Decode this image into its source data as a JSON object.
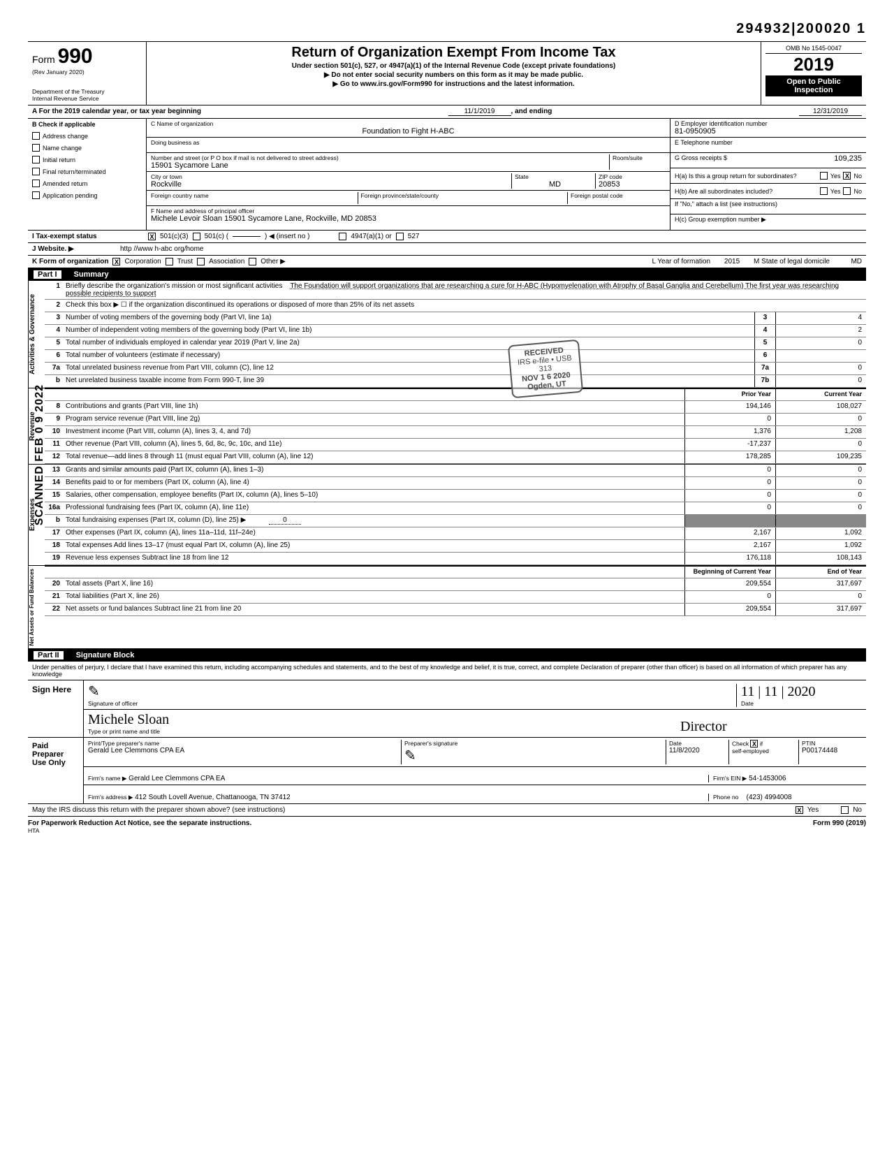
{
  "docstamp": "294932|200020 1",
  "scanned_side": "SCANNED FEB 0 9 2022",
  "header": {
    "form_word": "Form",
    "form_num": "990",
    "rev": "(Rev January 2020)",
    "dept": "Department of the Treasury",
    "irs": "Internal Revenue Service",
    "title": "Return of Organization Exempt From Income Tax",
    "sub1": "Under section 501(c), 527, or 4947(a)(1) of the Internal Revenue Code (except private foundations)",
    "sub2": "▶ Do not enter social security numbers on this form as it may be made public.",
    "sub3": "▶ Go to www.irs.gov/Form990 for instructions and the latest information.",
    "omb": "OMB No 1545-0047",
    "year": "2019",
    "open1": "Open to Public",
    "open2": "Inspection"
  },
  "rowA": {
    "label": "A  For the 2019 calendar year, or tax year beginning",
    "begin": "11/1/2019",
    "mid": ", and ending",
    "end": "12/31/2019"
  },
  "colB": {
    "hdr": "B  Check if applicable",
    "items": [
      "Address change",
      "Name change",
      "Initial return",
      "Final return/terminated",
      "Amended return",
      "Application pending"
    ]
  },
  "colC": {
    "name_lbl": "C  Name of organization",
    "name": "Foundation to Fight H-ABC",
    "dba_lbl": "Doing business as",
    "dba": "",
    "addr_lbl": "Number and street (or P O  box if mail is not delivered to street address)",
    "room_lbl": "Room/suite",
    "addr": "15901 Sycamore Lane",
    "city_lbl": "City or town",
    "state_lbl": "State",
    "zip_lbl": "ZIP code",
    "city": "Rockville",
    "state": "MD",
    "zip": "20853",
    "foreign_country_lbl": "Foreign country name",
    "foreign_prov_lbl": "Foreign province/state/county",
    "foreign_postal_lbl": "Foreign postal code",
    "officer_lbl": "F  Name and address of principal officer",
    "officer": "Michele Levoir Sloan 15901 Sycamore Lane, Rockville, MD  20853"
  },
  "colD": {
    "ein_lbl": "D  Employer identification number",
    "ein": "81-0950905",
    "tel_lbl": "E  Telephone number",
    "tel": "",
    "gross_lbl": "G  Gross receipts $",
    "gross": "109,235",
    "h_a": "H(a) Is this a group return for subordinates?",
    "h_b": "H(b) Are all subordinates included?",
    "h_no": "If \"No,\" attach a list  (see instructions)",
    "h_c": "H(c) Group exemption number ▶",
    "yes": "Yes",
    "no": "No",
    "x": "X"
  },
  "rowI": {
    "lbl": "I     Tax-exempt status",
    "opt1": "501(c)(3)",
    "opt2": "501(c)  (",
    "opt2b": ")  ◀ (insert no )",
    "opt3": "4947(a)(1) or",
    "opt4": "527"
  },
  "rowJ": {
    "lbl": "J     Website.  ▶",
    "val": "http //www h-abc org/home"
  },
  "rowK": {
    "lbl": "K  Form of organization",
    "opts": [
      "Corporation",
      "Trust",
      "Association",
      "Other ▶"
    ],
    "year_lbl": "L Year of formation",
    "year": "2015",
    "state_lbl": "M State of legal domicile",
    "state": "MD"
  },
  "part1": {
    "num": "Part I",
    "title": "Summary"
  },
  "stamp": {
    "l1": "RECEIVED",
    "l2": "IRS e-file • USB",
    "l3": "313",
    "l4": "NOV 1 6 2020",
    "l5": "Ogden, UT"
  },
  "summary": {
    "tabs": [
      "Activities & Governance",
      "Revenue",
      "Expenses",
      "Net Assets or\nFund Balances"
    ],
    "q1_num": "1",
    "q1": "Briefly describe the organization's mission or most significant activities",
    "q1_ans": "The Foundation will support organizations that are researching a cure for H-ABC (Hypomyelenation with Atrophy of Basal Ganglia and Cerebellum)  The first year was researching possible recipients to support",
    "q2_num": "2",
    "q2": "Check this box  ▶  ☐  if the organization discontinued its operations or disposed of more than 25% of its net assets",
    "lines_gov": [
      {
        "n": "3",
        "t": "Number of voting members of the governing body (Part VI, line 1a)",
        "c": "3",
        "v": "4"
      },
      {
        "n": "4",
        "t": "Number of independent voting members of the governing body (Part VI, line 1b)",
        "c": "4",
        "v": "2"
      },
      {
        "n": "5",
        "t": "Total number of individuals employed in calendar year 2019 (Part V, line 2a)",
        "c": "5",
        "v": "0"
      },
      {
        "n": "6",
        "t": "Total number of volunteers (estimate if necessary)",
        "c": "6",
        "v": ""
      },
      {
        "n": "7a",
        "t": "Total unrelated business revenue from Part VIII, column (C), line 12",
        "c": "7a",
        "v": "0"
      },
      {
        "n": "b",
        "t": "Net unrelated business taxable income from Form 990-T, line 39",
        "c": "7b",
        "v": "0"
      }
    ],
    "prior_hdr": "Prior Year",
    "cur_hdr": "Current Year",
    "lines_rev": [
      {
        "n": "8",
        "t": "Contributions and grants (Part VIII, line 1h)",
        "p": "194,146",
        "c": "108,027"
      },
      {
        "n": "9",
        "t": "Program service revenue (Part VIII, line 2g)",
        "p": "0",
        "c": "0"
      },
      {
        "n": "10",
        "t": "Investment income (Part VIII, column (A), lines 3, 4, and 7d)",
        "p": "1,376",
        "c": "1,208"
      },
      {
        "n": "11",
        "t": "Other revenue (Part VIII, column (A), lines 5, 6d, 8c, 9c, 10c, and 11e)",
        "p": "-17,237",
        "c": "0"
      },
      {
        "n": "12",
        "t": "Total revenue—add lines 8 through 11 (must equal Part VIII, column (A), line 12)",
        "p": "178,285",
        "c": "109,235"
      }
    ],
    "lines_exp": [
      {
        "n": "13",
        "t": "Grants and similar amounts paid (Part IX, column (A), lines 1–3)",
        "p": "0",
        "c": "0"
      },
      {
        "n": "14",
        "t": "Benefits paid to or for members (Part IX, column (A), line 4)",
        "p": "0",
        "c": "0"
      },
      {
        "n": "15",
        "t": "Salaries, other compensation, employee benefits (Part IX, column (A), lines 5–10)",
        "p": "0",
        "c": "0"
      },
      {
        "n": "16a",
        "t": "Professional fundraising fees (Part IX, column (A), line 11e)",
        "p": "0",
        "c": "0"
      },
      {
        "n": "b",
        "t": "Total fundraising expenses (Part IX, column (D), line 25)  ▶",
        "p": "shade",
        "c": "shade",
        "inline": "0"
      },
      {
        "n": "17",
        "t": "Other expenses (Part IX, column (A), lines 11a–11d, 11f–24e)",
        "p": "2,167",
        "c": "1,092"
      },
      {
        "n": "18",
        "t": "Total expenses  Add lines 13–17 (must equal Part IX, column (A), line 25)",
        "p": "2,167",
        "c": "1,092"
      },
      {
        "n": "19",
        "t": "Revenue less expenses  Subtract line 18 from line 12",
        "p": "176,118",
        "c": "108,143"
      }
    ],
    "boy_hdr": "Beginning of Current Year",
    "eoy_hdr": "End of Year",
    "lines_net": [
      {
        "n": "20",
        "t": "Total assets (Part X, line 16)",
        "p": "209,554",
        "c": "317,697"
      },
      {
        "n": "21",
        "t": "Total liabilities (Part X, line 26)",
        "p": "0",
        "c": "0"
      },
      {
        "n": "22",
        "t": "Net assets or fund balances  Subtract line 21 from line 20",
        "p": "209,554",
        "c": "317,697"
      }
    ]
  },
  "part2": {
    "num": "Part II",
    "title": "Signature Block"
  },
  "perjury": "Under penalties of perjury, I declare that I have examined this return, including accompanying schedules and statements, and to the best of my knowledge and belief, it is true, correct, and complete  Declaration of preparer (other than officer) is based on all information of which preparer has any knowledge",
  "sign": {
    "here": "Sign Here",
    "sig_lbl": "Signature of officer",
    "date_lbl": "Date",
    "date": "11 | 11 | 2020",
    "name_lbl": "Type or print name and title",
    "name_cursive": "Michele Sloan",
    "title_cursive": "Director"
  },
  "paid": {
    "lbl": "Paid Preparer Use Only",
    "name_lbl": "Print/Type preparer's name",
    "name": "Gerald Lee Clemmons CPA EA",
    "sig_lbl": "Preparer's signature",
    "date_lbl": "Date",
    "date": "11/8/2020",
    "check_lbl": "Check",
    "self_lbl": "self-employed",
    "if": "if",
    "ptin_lbl": "PTIN",
    "ptin": "P00174448",
    "firm_name_lbl": "Firm's name    ▶",
    "firm_name": "Gerald Lee Clemmons CPA EA",
    "firm_ein_lbl": "Firm's EIN ▶",
    "firm_ein": "54-1453006",
    "firm_addr_lbl": "Firm's address ▶",
    "firm_addr": "412 South Lovell Avenue, Chattanooga, TN 37412",
    "phone_lbl": "Phone no",
    "phone": "(423) 4994008"
  },
  "discuss": {
    "q": "May the IRS discuss this return with the preparer shown above? (see instructions)",
    "yes": "Yes",
    "no": "No"
  },
  "footer": {
    "left": "For Paperwork Reduction Act Notice, see the separate instructions.",
    "mid": "HTA",
    "right": "Form 990 (2019)"
  }
}
